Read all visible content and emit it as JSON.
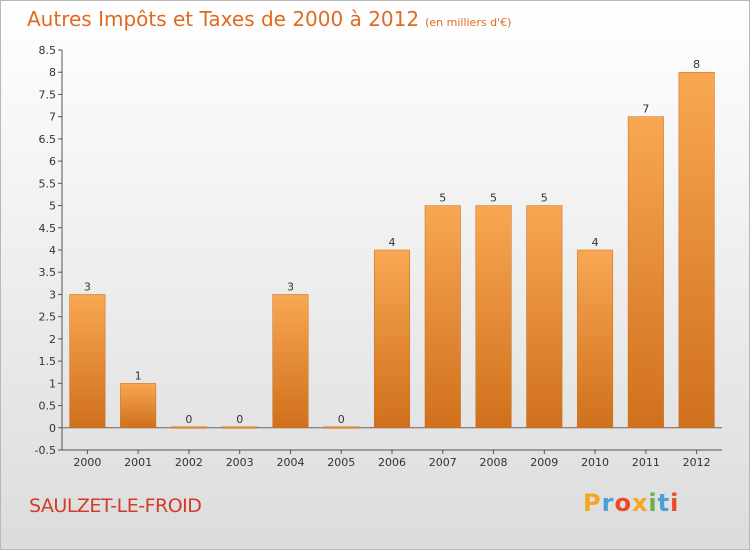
{
  "header": {
    "title": "Autres Impôts et Taxes de 2000 à 2012",
    "unit": "(en milliers d'€)"
  },
  "footer": {
    "commune": "SAULZET-LE-FROID",
    "logo_text": "Proxiti",
    "logo_colors": [
      "#f5a623",
      "#4a9fd8",
      "#e84a2a",
      "#f5a623",
      "#6ab04c",
      "#4a9fd8",
      "#e84a2a"
    ]
  },
  "chart_data": {
    "type": "bar",
    "title": "Autres Impôts et Taxes de 2000 à 2012",
    "subtitle": "(en milliers d'€)",
    "categories": [
      "2000",
      "2001",
      "2002",
      "2003",
      "2004",
      "2005",
      "2006",
      "2007",
      "2008",
      "2009",
      "2010",
      "2011",
      "2012"
    ],
    "values": [
      3,
      1,
      0,
      0,
      3,
      0,
      4,
      5,
      5,
      5,
      4,
      7,
      8
    ],
    "data_labels": [
      "3",
      "1",
      "0",
      "0",
      "3",
      "0",
      "4",
      "5",
      "5",
      "5",
      "4",
      "7",
      "8"
    ],
    "ylim": [
      -0.5,
      8.5
    ],
    "yticks": [
      "-0.5",
      "0",
      "0.5",
      "1",
      "1.5",
      "2",
      "2.5",
      "3",
      "3.5",
      "4",
      "4.5",
      "5",
      "5.5",
      "6",
      "6.5",
      "7",
      "7.5",
      "8",
      "8.5"
    ],
    "xlabel": "",
    "ylabel": "",
    "grid": false,
    "bar_color": "#f39c45",
    "bar_color_dark": "#d97420"
  }
}
